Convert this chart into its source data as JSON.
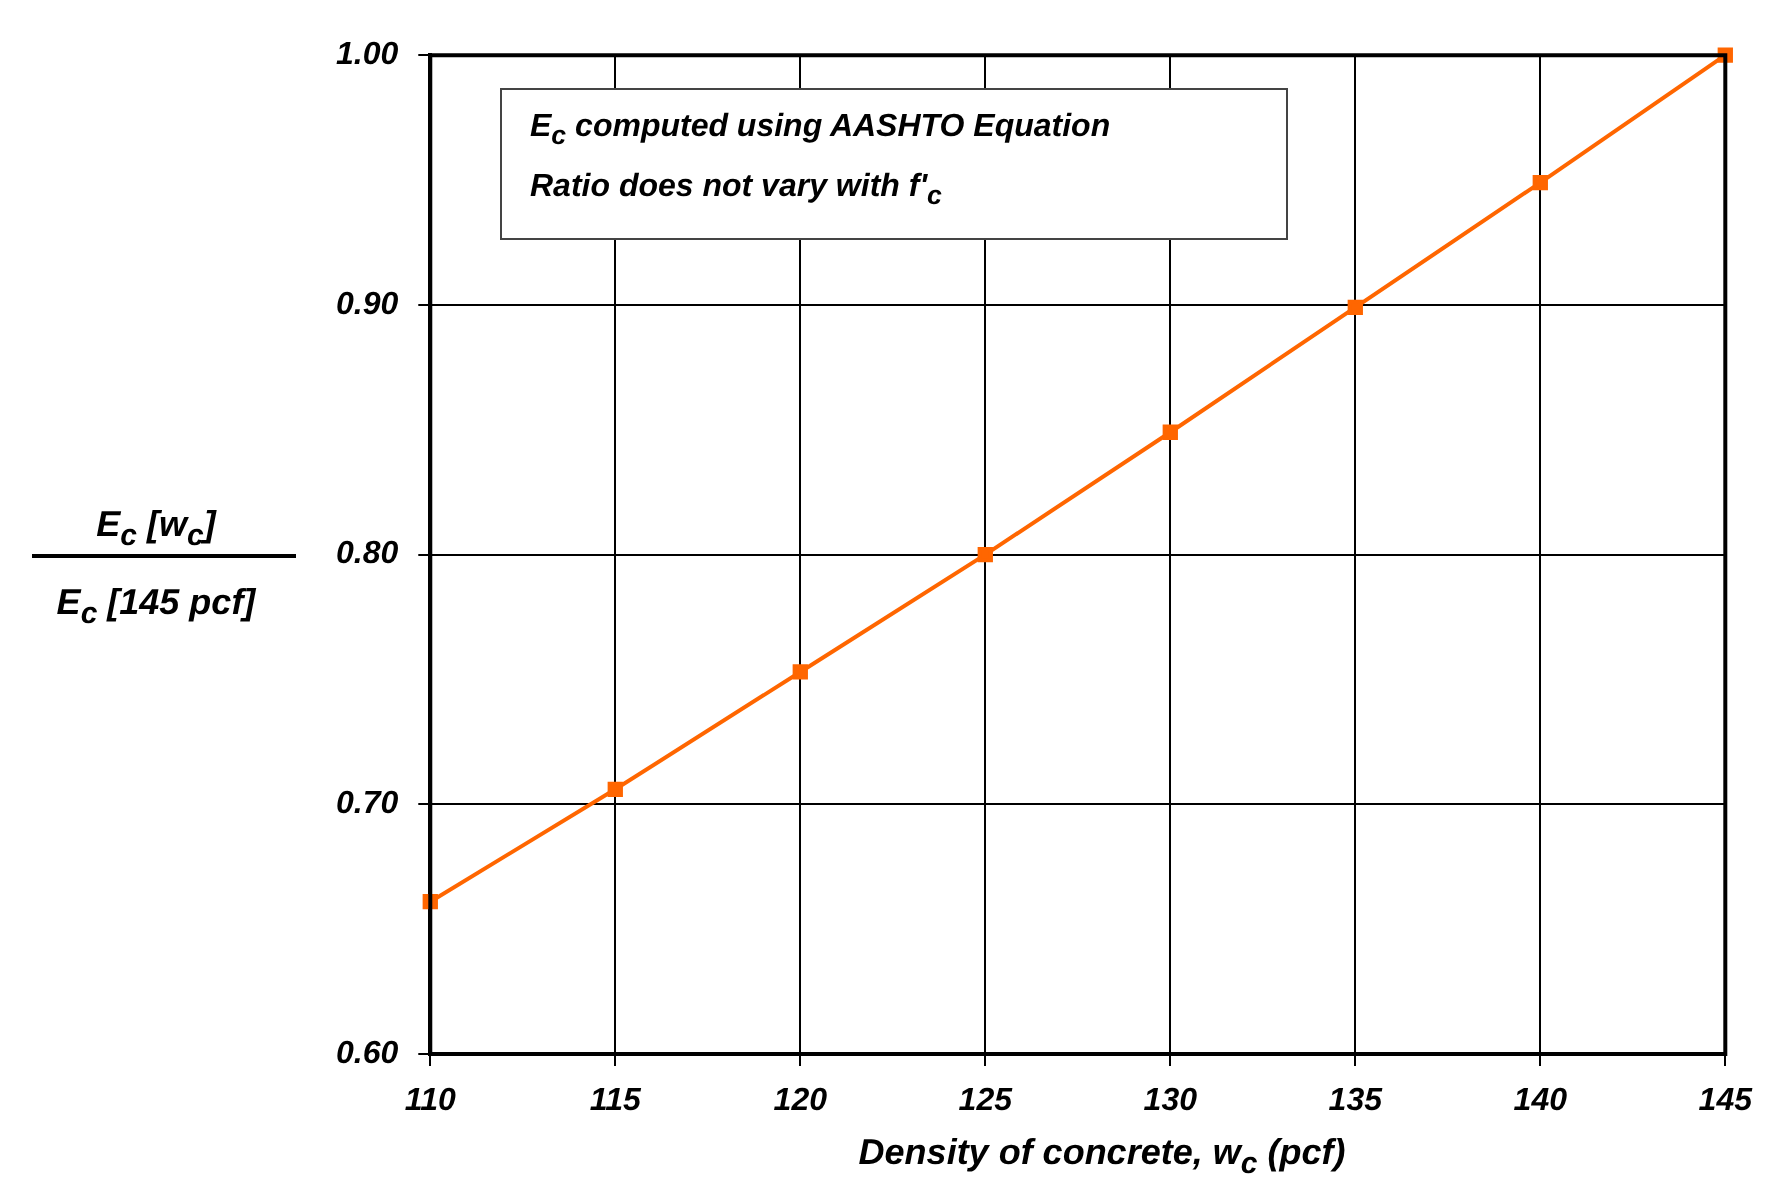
{
  "chart_data": {
    "type": "line",
    "xlabel": "Density of concrete, w$_{c}$  (pcf)",
    "ylabel": "E$_{c}$ [w$_{c}$]\nE$_{c}$ [145 pcf]",
    "annotations": [
      "E$_{c}$  computed using AASHTO Equation",
      "Ratio does not vary with f'$_{c}$"
    ],
    "x": [
      110,
      115,
      120,
      125,
      130,
      135,
      140,
      145
    ],
    "series": [
      {
        "color": "#ff6600",
        "values": [
          0.661,
          0.706,
          0.753,
          0.8,
          0.849,
          0.899,
          0.949,
          1.0
        ]
      }
    ],
    "xlim": [
      110,
      145
    ],
    "xticks": [
      110,
      115,
      120,
      125,
      130,
      135,
      140,
      145
    ],
    "ylim": [
      0.6,
      1.0
    ],
    "yticks": [
      {
        "value": 0.6,
        "label": "0.60"
      },
      {
        "value": 0.7,
        "label": "0.70"
      },
      {
        "value": 0.8,
        "label": "0.80"
      },
      {
        "value": 0.9,
        "label": "0.90"
      },
      {
        "value": 1.0,
        "label": "1.00"
      }
    ],
    "grid": true,
    "legend": false,
    "marker": "square",
    "line_style": "solid"
  }
}
